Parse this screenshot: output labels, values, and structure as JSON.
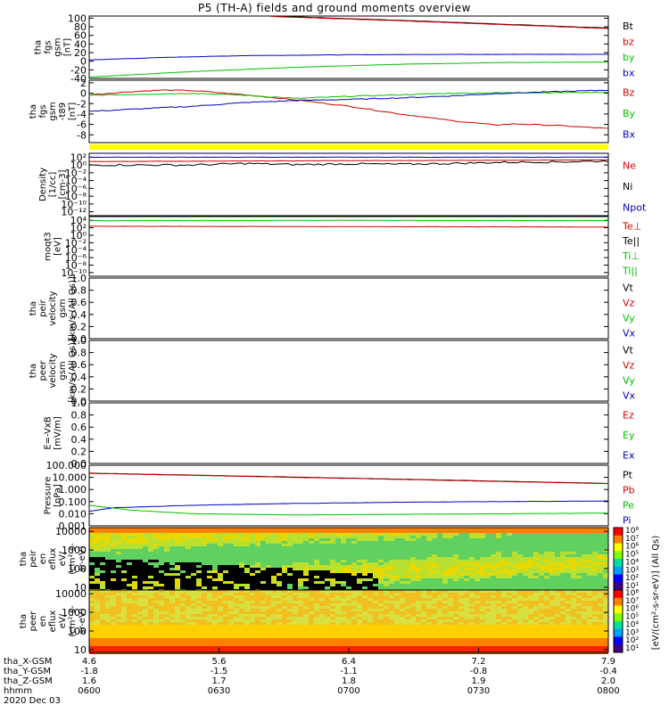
{
  "title": "P5 (TH-A) fields and ground moments overview",
  "date_label": "2020 Dec 03",
  "colors": {
    "black": "#000000",
    "red": "#d00000",
    "green": "#00c000",
    "blue": "#0000c0",
    "yellow": "#ffff00"
  },
  "panels": [
    {
      "id": "fgs_gsm",
      "ylabel": [
        "tha",
        "fgs",
        "gsm",
        "[nT]"
      ],
      "yticks": [
        "100",
        "80",
        "60",
        "40",
        "20",
        "0",
        "-20",
        "-40"
      ],
      "ytick_values": [
        100,
        80,
        60,
        40,
        20,
        0,
        -20,
        -40
      ],
      "ylim": [
        -40,
        105
      ],
      "legend": [
        {
          "text": "Bt",
          "color": "black"
        },
        {
          "text": "bz",
          "color": "red"
        },
        {
          "text": "by",
          "color": "green"
        },
        {
          "text": "bx",
          "color": "blue"
        }
      ],
      "series": [
        {
          "name": "Bt",
          "color": "black",
          "points": [
            [
              0.35,
              105
            ],
            [
              0.6,
              95
            ],
            [
              0.8,
              86
            ],
            [
              1.0,
              77
            ]
          ]
        },
        {
          "name": "bz",
          "color": "red",
          "points": [
            [
              0.35,
              104
            ],
            [
              0.6,
              94
            ],
            [
              0.8,
              85
            ],
            [
              1.0,
              76
            ]
          ]
        },
        {
          "name": "by",
          "color": "green",
          "points": [
            [
              0.0,
              -37
            ],
            [
              0.2,
              -24
            ],
            [
              0.4,
              -14
            ],
            [
              0.6,
              -7
            ],
            [
              0.8,
              -3
            ],
            [
              1.0,
              -2
            ]
          ]
        },
        {
          "name": "bx",
          "color": "blue",
          "points": [
            [
              0.0,
              3
            ],
            [
              0.15,
              9
            ],
            [
              0.3,
              13
            ],
            [
              0.5,
              15
            ],
            [
              0.7,
              16
            ],
            [
              1.0,
              16
            ]
          ]
        }
      ]
    },
    {
      "id": "fgs_dsl",
      "ylabel": [
        "tha",
        "fgs",
        "gsm",
        "-t89",
        "[nT]"
      ],
      "yticks": [
        "2",
        "0",
        "-2",
        "-4",
        "-6",
        "-8"
      ],
      "ytick_values": [
        2,
        0,
        -2,
        -4,
        -6,
        -8
      ],
      "ylim": [
        -9.5,
        2.5
      ],
      "legend": [
        {
          "text": "Bz",
          "color": "red"
        },
        {
          "text": "By",
          "color": "green"
        },
        {
          "text": "Bx",
          "color": "blue"
        }
      ],
      "series": [
        {
          "name": "Bz",
          "color": "red",
          "points": [
            [
              0.0,
              -0.3
            ],
            [
              0.08,
              0.3
            ],
            [
              0.14,
              0.6
            ],
            [
              0.2,
              0.5
            ],
            [
              0.3,
              -0.3
            ],
            [
              0.4,
              -1.3
            ],
            [
              0.5,
              -2.5
            ],
            [
              0.6,
              -4
            ],
            [
              0.7,
              -5.3
            ],
            [
              0.78,
              -6.1
            ],
            [
              0.82,
              -5.9
            ],
            [
              0.9,
              -6.2
            ],
            [
              1.0,
              -6.8
            ]
          ]
        },
        {
          "name": "By",
          "color": "green",
          "points": [
            [
              0.0,
              -0.4
            ],
            [
              0.1,
              -0.2
            ],
            [
              0.2,
              0
            ],
            [
              0.3,
              -0.4
            ],
            [
              0.4,
              -1
            ],
            [
              0.5,
              -0.6
            ],
            [
              0.6,
              -0.3
            ],
            [
              0.7,
              0
            ],
            [
              0.8,
              0.1
            ],
            [
              0.9,
              0.1
            ],
            [
              1.0,
              0.2
            ]
          ]
        },
        {
          "name": "Bx",
          "color": "blue",
          "points": [
            [
              0.0,
              -3.5
            ],
            [
              0.1,
              -3
            ],
            [
              0.2,
              -2.5
            ],
            [
              0.3,
              -1.8
            ],
            [
              0.4,
              -1.4
            ],
            [
              0.5,
              -1.2
            ],
            [
              0.6,
              -0.9
            ],
            [
              0.7,
              -0.5
            ],
            [
              0.8,
              0
            ],
            [
              0.9,
              0.3
            ],
            [
              1.0,
              0.6
            ]
          ]
        }
      ]
    },
    {
      "id": "density",
      "ylabel": [
        "Density",
        "[1/cc]",
        "[cm-3]"
      ],
      "yticks": [
        "10²",
        "10⁰",
        "10⁻²",
        "10⁻⁴",
        "10⁻⁶",
        "10⁻⁸",
        "10⁻¹⁰",
        "10⁻¹²"
      ],
      "ytick_values": [
        2,
        0,
        -2,
        -4,
        -6,
        -8,
        -10,
        -12
      ],
      "ylim": [
        -13,
        3
      ],
      "log": true,
      "legend": [
        {
          "text": "Ne",
          "color": "red"
        },
        {
          "text": "Ni",
          "color": "black"
        },
        {
          "text": "Npot",
          "color": "blue"
        }
      ],
      "series": [
        {
          "name": "Npot",
          "color": "blue",
          "points": [
            [
              0.0,
              2.0
            ],
            [
              0.5,
              2.0
            ],
            [
              1.0,
              2.0
            ]
          ]
        },
        {
          "name": "Ne",
          "color": "red",
          "points": [
            [
              0.0,
              0.9
            ],
            [
              0.5,
              1.1
            ],
            [
              1.0,
              1.3
            ]
          ]
        },
        {
          "name": "Ni",
          "color": "black",
          "points": [
            [
              0.0,
              0.0
            ],
            [
              0.2,
              0.0
            ],
            [
              0.3,
              0.4
            ],
            [
              0.4,
              0.1
            ],
            [
              0.5,
              0.3
            ],
            [
              0.6,
              0.2
            ],
            [
              0.7,
              0.4
            ],
            [
              0.8,
              0.7
            ],
            [
              0.9,
              0.8
            ],
            [
              1.0,
              1.0
            ]
          ]
        }
      ]
    },
    {
      "id": "temperature",
      "ylabel": [
        "moqt3",
        "[eV]"
      ],
      "yticks": [
        "10⁴",
        "10²",
        "10⁰",
        "10⁻²",
        "10⁻⁴",
        "10⁻⁶",
        "10⁻⁸",
        "10⁻¹⁰"
      ],
      "ytick_values": [
        4,
        2,
        0,
        -2,
        -4,
        -6,
        -8,
        -10
      ],
      "ylim": [
        -11,
        5
      ],
      "log": true,
      "legend": [
        {
          "text": "Te⊥",
          "color": "red"
        },
        {
          "text": "Te||",
          "color": "black"
        },
        {
          "text": "Ti⊥",
          "color": "green"
        },
        {
          "text": "Ti||",
          "color": "green"
        }
      ],
      "series": [
        {
          "name": "Ti",
          "color": "green",
          "points": [
            [
              0.0,
              3.9
            ],
            [
              0.5,
              4.0
            ],
            [
              1.0,
              3.9
            ]
          ]
        },
        {
          "name": "Te",
          "color": "red",
          "points": [
            [
              0.0,
              2.4
            ],
            [
              0.5,
              2.3
            ],
            [
              1.0,
              2.2
            ]
          ]
        }
      ]
    },
    {
      "id": "peir_velocity",
      "ylabel": [
        "tha",
        "peir",
        "velocity",
        "gsm",
        "[km/s (All Qs)]"
      ],
      "yticks": [
        "1.0",
        "0.8",
        "0.6",
        "0.4",
        "0.2",
        "0.0"
      ],
      "ytick_values": [
        1.0,
        0.8,
        0.6,
        0.4,
        0.2,
        0.0
      ],
      "ylim": [
        0,
        1
      ],
      "legend": [
        {
          "text": "Vt",
          "color": "black"
        },
        {
          "text": "Vz",
          "color": "red"
        },
        {
          "text": "Vy",
          "color": "green"
        },
        {
          "text": "Vx",
          "color": "blue"
        }
      ],
      "series": []
    },
    {
      "id": "peer_velocity",
      "ylabel": [
        "tha",
        "peer",
        "velocity",
        "gsm",
        "[km/s (All Qs)]"
      ],
      "yticks": [
        "1.0",
        "0.8",
        "0.6",
        "0.4",
        "0.2",
        "0.0"
      ],
      "ytick_values": [
        1.0,
        0.8,
        0.6,
        0.4,
        0.2,
        0.0
      ],
      "ylim": [
        0,
        1
      ],
      "legend": [
        {
          "text": "Vt",
          "color": "black"
        },
        {
          "text": "Vz",
          "color": "red"
        },
        {
          "text": "Vy",
          "color": "green"
        },
        {
          "text": "Vx",
          "color": "blue"
        }
      ],
      "series": []
    },
    {
      "id": "efield",
      "ylabel": [
        "E=-VxB",
        "[mV/m]"
      ],
      "yticks": [
        "1.0",
        "0.8",
        "0.6",
        "0.4",
        "0.2",
        "0.0"
      ],
      "ytick_values": [
        1.0,
        0.8,
        0.6,
        0.4,
        0.2,
        0.0
      ],
      "ylim": [
        0,
        1
      ],
      "legend": [
        {
          "text": "Ez",
          "color": "red"
        },
        {
          "text": "Ey",
          "color": "green"
        },
        {
          "text": "Ex",
          "color": "blue"
        }
      ],
      "series": []
    },
    {
      "id": "pressure",
      "ylabel": [
        "Pressure",
        "[nPa]"
      ],
      "yticks": [
        "100.000",
        "10.000",
        "1.000",
        "0.100",
        "0.010",
        "0.001"
      ],
      "ytick_values": [
        2,
        1,
        0,
        -1,
        -2,
        -3
      ],
      "ylim": [
        -3,
        2
      ],
      "log": true,
      "legend": [
        {
          "text": "Pt",
          "color": "black"
        },
        {
          "text": "Pb",
          "color": "red"
        },
        {
          "text": "Pe",
          "color": "green"
        },
        {
          "text": "Pi",
          "color": "blue"
        }
      ],
      "series": [
        {
          "name": "Pt",
          "color": "black",
          "points": [
            [
              0.0,
              1.35
            ],
            [
              0.3,
              1.1
            ],
            [
              0.6,
              0.85
            ],
            [
              1.0,
              0.5
            ]
          ]
        },
        {
          "name": "Pb",
          "color": "red",
          "points": [
            [
              0.0,
              1.33
            ],
            [
              0.3,
              1.08
            ],
            [
              0.6,
              0.83
            ],
            [
              1.0,
              0.48
            ]
          ]
        },
        {
          "name": "Pi",
          "color": "blue",
          "points": [
            [
              0.0,
              -1.8
            ],
            [
              0.05,
              -1.5
            ],
            [
              0.2,
              -1.3
            ],
            [
              0.4,
              -1.15
            ],
            [
              0.6,
              -1.05
            ],
            [
              0.8,
              -1.0
            ],
            [
              1.0,
              -0.95
            ]
          ]
        },
        {
          "name": "Pe",
          "color": "green",
          "points": [
            [
              0.0,
              -1.3
            ],
            [
              0.08,
              -1.7
            ],
            [
              0.2,
              -2.0
            ],
            [
              0.4,
              -2.1
            ],
            [
              0.6,
              -2.05
            ],
            [
              0.8,
              -2.0
            ],
            [
              1.0,
              -1.95
            ]
          ]
        }
      ]
    },
    {
      "id": "peir_eflux",
      "ylabel": [
        "tha",
        "peir",
        "en",
        "eflux",
        "eV/",
        "(cm²-s-",
        "sr-eV)"
      ],
      "yticks": [
        "10000",
        "1000",
        "100",
        "10"
      ],
      "ytick_values": [
        4,
        3,
        2,
        1
      ],
      "ylim": [
        0.85,
        4.2
      ],
      "spectrogram": true,
      "colorbar_ticks": [
        "10⁸",
        "10⁷",
        "10⁶",
        "10⁵",
        "10⁴",
        "10³",
        "10²",
        "10¹"
      ]
    },
    {
      "id": "peer_eflux",
      "ylabel": [
        "tha",
        "peer",
        "en",
        "eflux",
        "eV/",
        "(cm²-s-",
        "sr-eV)"
      ],
      "yticks": [
        "10000",
        "1000",
        "100",
        "10"
      ],
      "ytick_values": [
        4,
        3,
        2,
        1
      ],
      "ylim": [
        0.85,
        4.2
      ],
      "spectrogram": true,
      "colorbar_ticks": [
        "10⁸",
        "10⁷",
        "10⁶",
        "10⁵",
        "10⁴",
        "10³",
        "10²",
        "10¹"
      ]
    }
  ],
  "colorbar_label": "[eV/(cm²-s-sr-eV)] (All Qs)",
  "xaxis": {
    "row_labels": [
      "tha_X-GSM",
      "tha_Y-GSM",
      "tha_Z-GSM",
      "hhmm"
    ],
    "columns": [
      {
        "x": 0.0,
        "values": [
          "4.6",
          "-1.8",
          "1.6",
          "0600"
        ]
      },
      {
        "x": 0.25,
        "values": [
          "5.6",
          "-1.5",
          "1.7",
          "0630"
        ]
      },
      {
        "x": 0.5,
        "values": [
          "6.4",
          "-1.1",
          "1.8",
          "0700"
        ]
      },
      {
        "x": 0.75,
        "values": [
          "7.2",
          "-0.8",
          "1.9",
          "0730"
        ]
      },
      {
        "x": 1.0,
        "values": [
          "7.9",
          "-0.4",
          "2.0",
          "0800"
        ]
      }
    ]
  }
}
